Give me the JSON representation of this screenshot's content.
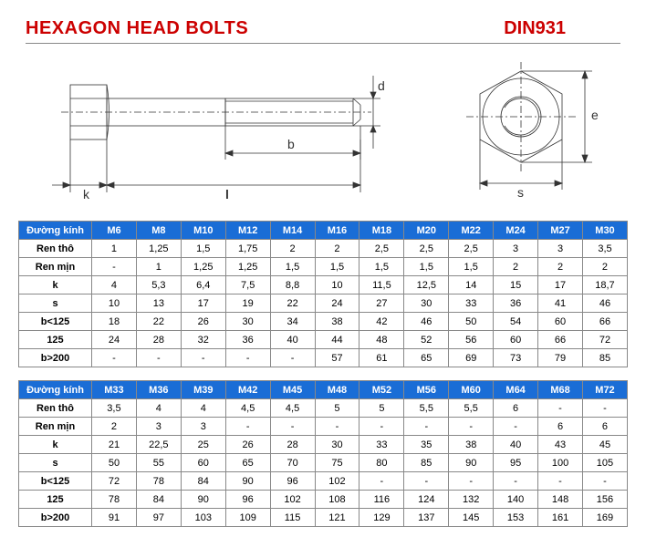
{
  "header": {
    "title_left": "HEXAGON HEAD BOLTS",
    "title_right": "DIN931",
    "title_color": "#cc0000",
    "title_fontsize": 20
  },
  "diagram": {
    "side_view": {
      "dim_labels": {
        "k": "k",
        "l": "l",
        "b": "b",
        "d": "d"
      },
      "stroke_color": "#333333",
      "stroke_width": 0.8
    },
    "top_view": {
      "dim_labels": {
        "s": "s",
        "e": "e"
      },
      "stroke_color": "#333333",
      "stroke_width": 0.8
    }
  },
  "table1": {
    "header_bg": "#1a6dd6",
    "header_color": "#ffffff",
    "border_color": "#888888",
    "label_header": "Đường kính",
    "columns": [
      "M6",
      "M8",
      "M10",
      "M12",
      "M14",
      "M16",
      "M18",
      "M20",
      "M22",
      "M24",
      "M27",
      "M30"
    ],
    "rows": [
      {
        "label": "Ren thô",
        "cells": [
          "1",
          "1,25",
          "1,5",
          "1,75",
          "2",
          "2",
          "2,5",
          "2,5",
          "2,5",
          "3",
          "3",
          "3,5"
        ]
      },
      {
        "label": "Ren mịn",
        "cells": [
          "-",
          "1",
          "1,25",
          "1,25",
          "1,5",
          "1,5",
          "1,5",
          "1,5",
          "1,5",
          "2",
          "2",
          "2"
        ]
      },
      {
        "label": "k",
        "cells": [
          "4",
          "5,3",
          "6,4",
          "7,5",
          "8,8",
          "10",
          "11,5",
          "12,5",
          "14",
          "15",
          "17",
          "18,7"
        ]
      },
      {
        "label": "s",
        "cells": [
          "10",
          "13",
          "17",
          "19",
          "22",
          "24",
          "27",
          "30",
          "33",
          "36",
          "41",
          "46"
        ]
      },
      {
        "label": "b<125",
        "cells": [
          "18",
          "22",
          "26",
          "30",
          "34",
          "38",
          "42",
          "46",
          "50",
          "54",
          "60",
          "66"
        ]
      },
      {
        "label": "125",
        "cells": [
          "24",
          "28",
          "32",
          "36",
          "40",
          "44",
          "48",
          "52",
          "56",
          "60",
          "66",
          "72"
        ]
      },
      {
        "label": "b>200",
        "cells": [
          "-",
          "-",
          "-",
          "-",
          "-",
          "57",
          "61",
          "65",
          "69",
          "73",
          "79",
          "85"
        ]
      }
    ]
  },
  "table2": {
    "header_bg": "#1a6dd6",
    "header_color": "#ffffff",
    "border_color": "#888888",
    "label_header": "Đường kính",
    "columns": [
      "M33",
      "M36",
      "M39",
      "M42",
      "M45",
      "M48",
      "M52",
      "M56",
      "M60",
      "M64",
      "M68",
      "M72"
    ],
    "rows": [
      {
        "label": "Ren thô",
        "cells": [
          "3,5",
          "4",
          "4",
          "4,5",
          "4,5",
          "5",
          "5",
          "5,5",
          "5,5",
          "6",
          "-",
          "-"
        ]
      },
      {
        "label": "Ren mịn",
        "cells": [
          "2",
          "3",
          "3",
          "-",
          "-",
          "-",
          "-",
          "-",
          "-",
          "-",
          "6",
          "6"
        ]
      },
      {
        "label": "k",
        "cells": [
          "21",
          "22,5",
          "25",
          "26",
          "28",
          "30",
          "33",
          "35",
          "38",
          "40",
          "43",
          "45"
        ]
      },
      {
        "label": "s",
        "cells": [
          "50",
          "55",
          "60",
          "65",
          "70",
          "75",
          "80",
          "85",
          "90",
          "95",
          "100",
          "105"
        ]
      },
      {
        "label": "b<125",
        "cells": [
          "72",
          "78",
          "84",
          "90",
          "96",
          "102",
          "-",
          "-",
          "-",
          "-",
          "-",
          "-"
        ]
      },
      {
        "label": "125",
        "cells": [
          "78",
          "84",
          "90",
          "96",
          "102",
          "108",
          "116",
          "124",
          "132",
          "140",
          "148",
          "156"
        ]
      },
      {
        "label": "b>200",
        "cells": [
          "91",
          "97",
          "103",
          "109",
          "115",
          "121",
          "129",
          "137",
          "145",
          "153",
          "161",
          "169"
        ]
      }
    ]
  }
}
